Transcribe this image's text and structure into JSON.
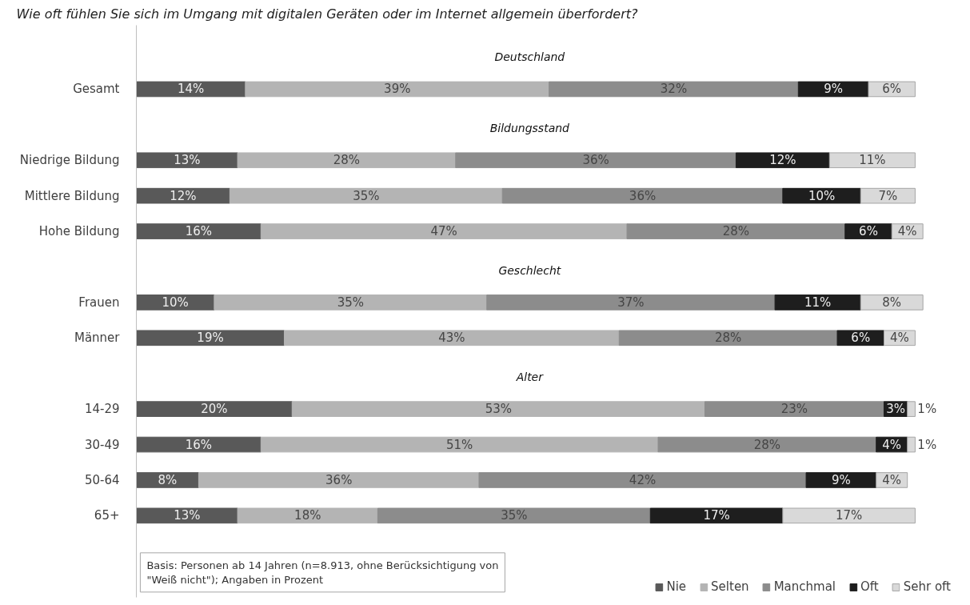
{
  "chart_data": {
    "type": "bar",
    "orientation": "horizontal",
    "stacked": true,
    "title": "Wie oft fühlen Sie sich im Umgang mit digitalen Geräten oder im Internet allgemein überfordert?",
    "categories": [
      null,
      "Gesamt",
      null,
      "Niedrige Bildung",
      "Mittlere Bildung",
      "Hohe Bildung",
      null,
      "Frauen",
      "Männer",
      null,
      "14-29",
      "30-49",
      "50-64",
      "65+"
    ],
    "series": [
      {
        "name": "Nie",
        "color": "#595959",
        "values": [
          null,
          14,
          null,
          13,
          12,
          16,
          null,
          10,
          19,
          null,
          20,
          16,
          8,
          13
        ],
        "value_labels": [
          null,
          "14%",
          null,
          "13%",
          "12%",
          "16%",
          null,
          "10%",
          "19%",
          null,
          "20%",
          "16%",
          "8%",
          "13%"
        ]
      },
      {
        "name": "Selten",
        "color": "#b4b4b4",
        "values": [
          null,
          39,
          null,
          28,
          35,
          47,
          null,
          35,
          43,
          null,
          53,
          51,
          36,
          18
        ],
        "value_labels": [
          null,
          "39%",
          null,
          "28%",
          "35%",
          "47%",
          null,
          "35%",
          "43%",
          null,
          "53%",
          "51%",
          "36%",
          "18%"
        ]
      },
      {
        "name": "Manchmal",
        "color": "#8c8c8c",
        "values": [
          null,
          32,
          null,
          36,
          36,
          28,
          null,
          37,
          28,
          null,
          23,
          28,
          42,
          35
        ],
        "value_labels": [
          null,
          "32%",
          null,
          "36%",
          "36%",
          "28%",
          null,
          "37%",
          "28%",
          null,
          "23%",
          "28%",
          "42%",
          "35%"
        ]
      },
      {
        "name": "Oft",
        "color": "#1e1e1e",
        "values": [
          null,
          9,
          null,
          12,
          10,
          6,
          null,
          11,
          6,
          null,
          3,
          4,
          9,
          17
        ],
        "value_labels": [
          null,
          "9%",
          null,
          "12%",
          "10%",
          "6%",
          null,
          "11%",
          "6%",
          null,
          "3%",
          "4%",
          "9%",
          "17%"
        ]
      },
      {
        "name": "Sehr oft",
        "color": "#d9d9d9",
        "values": [
          null,
          6,
          null,
          11,
          7,
          4,
          null,
          8,
          4,
          null,
          1,
          1,
          4,
          17
        ],
        "value_labels": [
          null,
          "6%",
          null,
          "11%",
          "7%",
          "4%",
          null,
          "8%",
          "4%",
          null,
          "1%",
          "1%",
          "4%",
          "17%"
        ]
      }
    ],
    "annotations": [
      "Deutschland",
      "Bildungsstand",
      "Geschlecht",
      "Alter",
      "Basis: Personen ab 14 Jahren (n=8.913, ohne Berücksichtigung von \"Weiß nicht\"); Angaben in Prozent"
    ],
    "tick_labels": "y",
    "grid": false,
    "legend": "bottom right"
  }
}
